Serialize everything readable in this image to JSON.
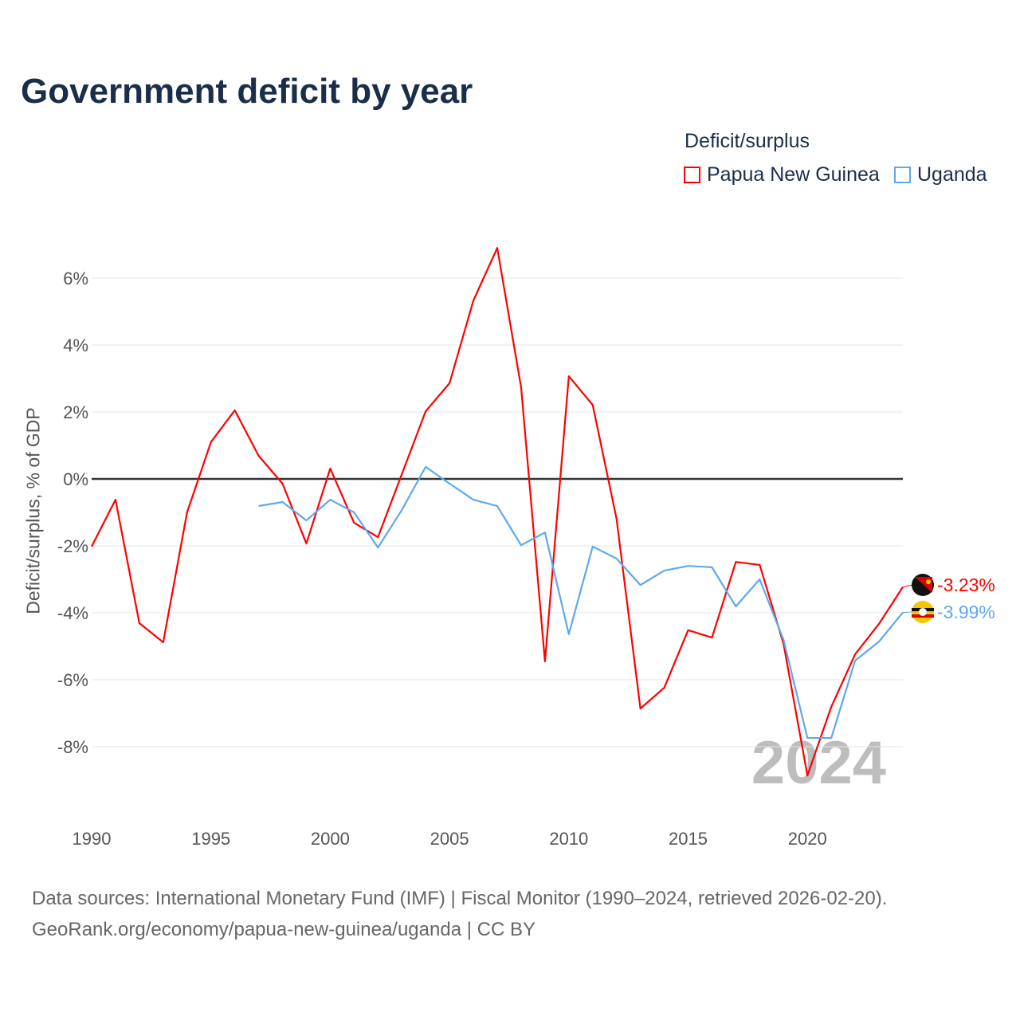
{
  "title": "Government deficit by year",
  "legend_title": "Deficit/surplus",
  "footer": {
    "line1": "Data sources: International Monetary Fund (IMF) | Fiscal Monitor (1990–2024, retrieved 2026-02-20).",
    "line2": "GeoRank.org/economy/papua-new-guinea/uganda | CC BY"
  },
  "year_watermark": "2024",
  "chart_data": {
    "type": "line",
    "title": "Government deficit by year",
    "xlabel": "",
    "ylabel": "Deficit/surplus, % of GDP",
    "xlim": [
      1990,
      2024
    ],
    "ylim": [
      -9.8,
      7.2
    ],
    "xticks": [
      1990,
      1995,
      2000,
      2005,
      2010,
      2015,
      2020
    ],
    "yticks": [
      6,
      4,
      2,
      0,
      -2,
      -4,
      -6,
      -8
    ],
    "ytick_labels": [
      "6%",
      "4%",
      "2%",
      "0%",
      "-2%",
      "-4%",
      "-6%",
      "-8%"
    ],
    "grid": "horizontal",
    "legend": "top-right",
    "series": [
      {
        "name": "Papua New Guinea",
        "color": "#ff0000",
        "end_label": "-3.23%",
        "x": [
          1990,
          1991,
          1992,
          1993,
          1994,
          1995,
          1996,
          1997,
          1998,
          1999,
          2000,
          2001,
          2002,
          2003,
          2004,
          2005,
          2006,
          2007,
          2008,
          2009,
          2010,
          2011,
          2012,
          2013,
          2014,
          2015,
          2016,
          2017,
          2018,
          2019,
          2020,
          2021,
          2022,
          2023,
          2024
        ],
        "values": [
          -2.02,
          -0.62,
          -4.31,
          -4.88,
          -1.0,
          1.1,
          2.05,
          0.69,
          -0.14,
          -1.93,
          0.31,
          -1.31,
          -1.74,
          0.14,
          2.02,
          2.86,
          5.33,
          6.9,
          2.74,
          -5.45,
          3.07,
          2.21,
          -1.19,
          -6.86,
          -6.24,
          -4.52,
          -4.74,
          -2.48,
          -2.57,
          -4.93,
          -8.86,
          -6.81,
          -5.24,
          -4.33,
          -3.23
        ]
      },
      {
        "name": "Uganda",
        "color": "#5ea8ec",
        "end_label": "-3.99%",
        "x": [
          1997,
          1998,
          1999,
          2000,
          2001,
          2002,
          2003,
          2004,
          2005,
          2006,
          2007,
          2008,
          2009,
          2010,
          2011,
          2012,
          2013,
          2014,
          2015,
          2016,
          2017,
          2018,
          2019,
          2020,
          2021,
          2022,
          2023,
          2024
        ],
        "values": [
          -0.81,
          -0.69,
          -1.24,
          -0.62,
          -1.0,
          -2.05,
          -0.93,
          0.36,
          -0.14,
          -0.62,
          -0.81,
          -1.98,
          -1.6,
          -4.64,
          -2.02,
          -2.38,
          -3.17,
          -2.74,
          -2.6,
          -2.64,
          -3.81,
          -3.0,
          -4.81,
          -7.74,
          -7.74,
          -5.43,
          -4.86,
          -3.99
        ]
      }
    ]
  }
}
